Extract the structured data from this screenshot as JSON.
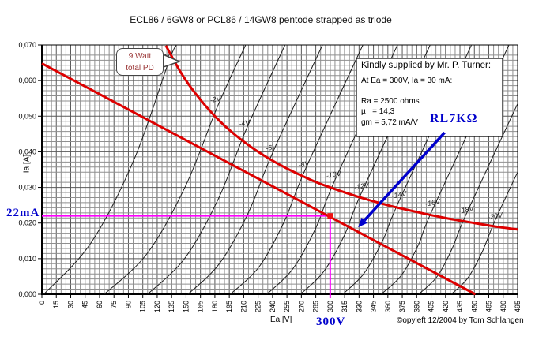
{
  "title": "ECL86 / 6GW8 or PCL86 / 14GW8 pentode strapped as triode",
  "chart_data": {
    "type": "line",
    "xlabel": "Ea [V]",
    "ylabel": "Ia [A]",
    "xlim": [
      0,
      495
    ],
    "ylim": [
      0,
      0.07
    ],
    "x_ticks": [
      0,
      15,
      30,
      45,
      60,
      75,
      90,
      105,
      120,
      135,
      150,
      165,
      180,
      195,
      210,
      225,
      240,
      255,
      270,
      285,
      300,
      315,
      330,
      345,
      360,
      375,
      390,
      405,
      420,
      435,
      450,
      465,
      480,
      495
    ],
    "y_ticks": {
      "values": [
        0,
        0.01,
        0.02,
        0.03,
        0.04,
        0.05,
        0.06,
        0.07
      ],
      "labels": [
        "0,000",
        "0,010",
        "0,020",
        "0,030",
        "0,040",
        "0,050",
        "0,060",
        "0,070"
      ]
    },
    "grid": {
      "minor_x_step_v": 5,
      "minor_y_divisions_per_major": 7
    },
    "grid_curves": [
      {
        "label": "0V",
        "points": [
          [
            2,
            0
          ],
          [
            51,
            0.0144
          ],
          [
            96,
            0.0379
          ],
          [
            132,
            0.0653
          ],
          [
            140,
            0.07
          ]
        ],
        "label_at": [
          129,
          0.0653
        ]
      },
      {
        "label": "-2V",
        "points": [
          [
            65,
            0
          ],
          [
            110,
            0.0116
          ],
          [
            150,
            0.0307
          ],
          [
            183,
            0.0529
          ],
          [
            212,
            0.07
          ]
        ],
        "label_at": [
          181,
          0.0534
        ]
      },
      {
        "label": "-4V",
        "points": [
          [
            110,
            0
          ],
          [
            149,
            0.0102
          ],
          [
            184,
            0.027
          ],
          [
            213,
            0.0465
          ],
          [
            253,
            0.07
          ]
        ],
        "label_at": [
          211,
          0.0467
        ]
      },
      {
        "label": "-6V",
        "points": [
          [
            152,
            0
          ],
          [
            185,
            0.0087
          ],
          [
            215,
            0.023
          ],
          [
            240,
            0.0397
          ],
          [
            292,
            0.07
          ]
        ],
        "label_at": [
          239,
          0.0399
        ]
      },
      {
        "label": "-8V",
        "points": [
          [
            196,
            0
          ],
          [
            226,
            0.0077
          ],
          [
            252,
            0.0203
          ],
          [
            274,
            0.035
          ],
          [
            334,
            0.07
          ]
        ],
        "label_at": [
          273,
          0.0352
        ]
      },
      {
        "label": "-10V",
        "points": [
          [
            234,
            0
          ],
          [
            261,
            0.0071
          ],
          [
            285,
            0.0186
          ],
          [
            305,
            0.0321
          ],
          [
            370,
            0.07
          ]
        ],
        "label_at": [
          304,
          0.0323
        ]
      },
      {
        "label": "-12V",
        "points": [
          [
            269,
            0
          ],
          [
            293,
            0.0063
          ],
          [
            315,
            0.0167
          ],
          [
            333,
            0.0288
          ],
          [
            404,
            0.07
          ]
        ],
        "label_at": [
          333,
          0.029
        ]
      },
      {
        "label": "-14V",
        "points": [
          [
            313,
            0
          ],
          [
            335,
            0.0058
          ],
          [
            355,
            0.0153
          ],
          [
            372,
            0.0264
          ],
          [
            447,
            0.07
          ]
        ],
        "label_at": [
          372,
          0.0266
        ]
      },
      {
        "label": "-16V",
        "points": [
          [
            353,
            0
          ],
          [
            374,
            0.0053
          ],
          [
            392,
            0.014
          ],
          [
            407,
            0.0241
          ],
          [
            486,
            0.07
          ]
        ],
        "label_at": [
          407,
          0.0244
        ]
      },
      {
        "label": "-18V",
        "points": [
          [
            392,
            0
          ],
          [
            411,
            0.0049
          ],
          [
            427,
            0.0129
          ],
          [
            441,
            0.0222
          ],
          [
            495,
            0.0535
          ]
        ],
        "label_at": [
          442,
          0.0224
        ]
      },
      {
        "label": "-20V",
        "points": [
          [
            426,
            0
          ],
          [
            443,
            0.0045
          ],
          [
            458,
            0.0118
          ],
          [
            471,
            0.0204
          ],
          [
            495,
            0.0343
          ]
        ],
        "label_at": [
          472,
          0.0206
        ]
      }
    ],
    "dissipation_curve": {
      "watts": 9,
      "callout": {
        "line1": "9 Watt",
        "line2": "total PD"
      },
      "points": [
        [
          129,
          0.0698
        ],
        [
          145,
          0.0621
        ],
        [
          160,
          0.0563
        ],
        [
          180,
          0.05
        ],
        [
          200,
          0.045
        ],
        [
          225,
          0.04
        ],
        [
          250,
          0.036
        ],
        [
          280,
          0.0321
        ],
        [
          300,
          0.03
        ],
        [
          330,
          0.0273
        ],
        [
          360,
          0.025
        ],
        [
          390,
          0.0231
        ],
        [
          420,
          0.0214
        ],
        [
          450,
          0.02
        ],
        [
          475,
          0.0189
        ],
        [
          495,
          0.0182
        ]
      ]
    },
    "load_line": {
      "label": "RL7KΩ",
      "resistance_ohms": 7000,
      "points": [
        [
          0,
          0.0648
        ],
        [
          451,
          0
        ]
      ]
    },
    "operating_point": {
      "ea_v": 300,
      "ia_a": 0.022,
      "current_label": "22mA",
      "voltage_label": "300V"
    },
    "annotation_arrow": {
      "from": [
        419,
        0.0454
      ],
      "to": [
        329,
        0.0188
      ]
    },
    "info_box": {
      "title": "Kindly supplied by Mr. P. Turner:",
      "lines": [
        "At Ea = 300V, Ia = 30 mA:",
        "Ra = 2500 ohms",
        "µ   = 14,3",
        "gm = 5,72 mA/V"
      ]
    },
    "copyright": "©opyleft 12/2004 by Tom Schlangen"
  },
  "colors": {
    "red_curve": "#dd0000",
    "magenta": "#ff00ff",
    "blue": "#0000cc",
    "callout_text": "#993333",
    "grid_minor": "#8f8f8f",
    "grid_major": "#585858",
    "thin_curve": "#1c1c1c"
  }
}
